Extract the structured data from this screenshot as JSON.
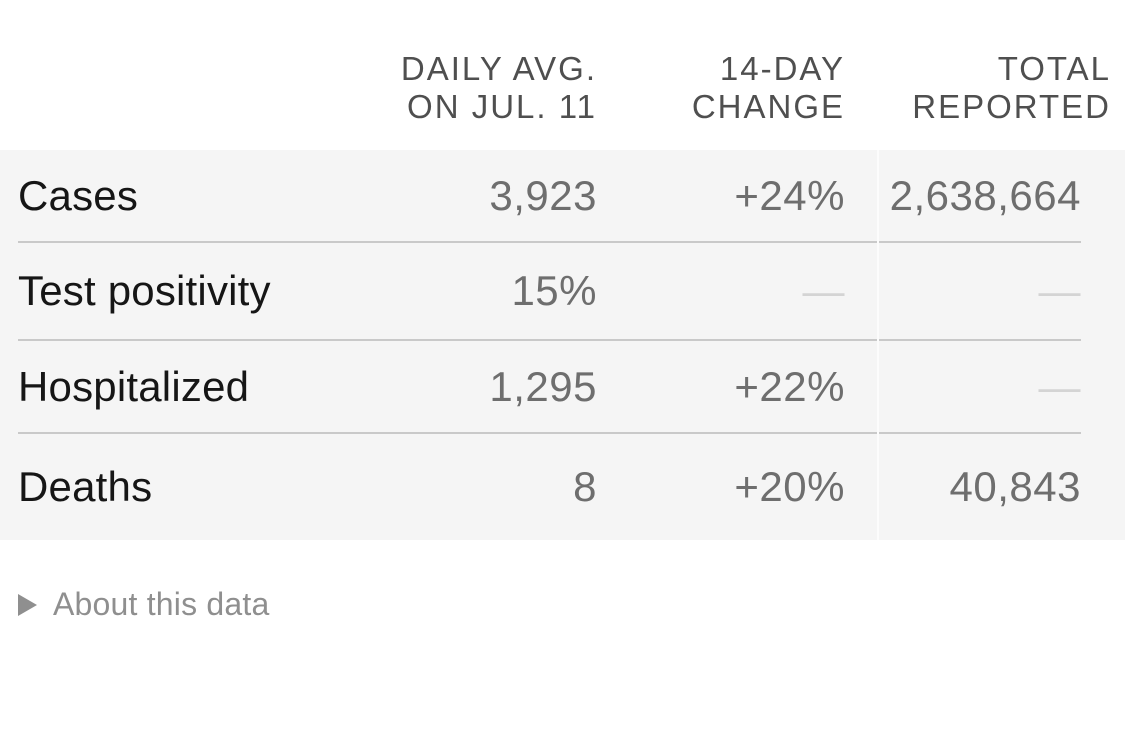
{
  "table": {
    "columns": [
      {
        "header": "DAILY AVG.\nON JUL. 11"
      },
      {
        "header": "14-DAY\nCHANGE"
      },
      {
        "header": "TOTAL\nREPORTED"
      }
    ],
    "rows": [
      {
        "label": "Cases",
        "daily_avg": "3,923",
        "change": "+24%",
        "total": "2,638,664"
      },
      {
        "label": "Test positivity",
        "daily_avg": "15%",
        "change": "—",
        "total": "—"
      },
      {
        "label": "Hospitalized",
        "daily_avg": "1,295",
        "change": "+22%",
        "total": "—"
      },
      {
        "label": "Deaths",
        "daily_avg": "8",
        "change": "+20%",
        "total": "40,843"
      }
    ]
  },
  "footer": {
    "about_label": "About this data",
    "expand_icon": "right-pointing-triangle"
  },
  "colors": {
    "band_background": "#f5f5f5",
    "row_separator": "#c9c9c9",
    "column_divider": "#fcfcfc",
    "header_text": "#4f4f4f",
    "label_text": "#161616",
    "value_text": "#6e6e6e",
    "placeholder_dash": "#d4d4d4",
    "footer_text": "#8f8f8f"
  }
}
